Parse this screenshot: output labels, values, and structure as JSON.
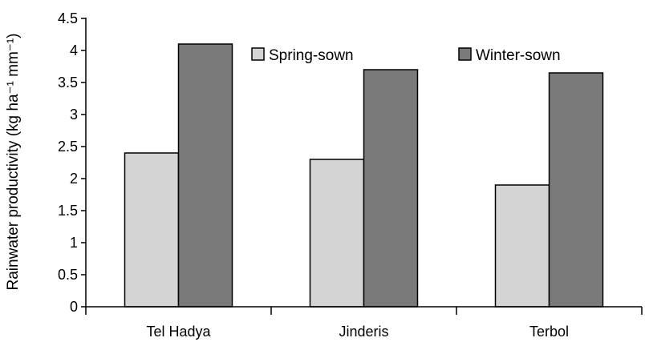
{
  "chart_data": {
    "type": "bar",
    "categories": [
      "Tel Hadya",
      "Jinderis",
      "Terbol"
    ],
    "series": [
      {
        "name": "Spring-sown",
        "values": [
          2.4,
          2.3,
          1.9
        ],
        "color": "#d4d4d4"
      },
      {
        "name": "Winter-sown",
        "values": [
          4.1,
          3.7,
          3.65
        ],
        "color": "#7a7a7a"
      }
    ],
    "ylabel": "Rainwater productivity (kg ha⁻¹ mm⁻¹)",
    "ylim": [
      0,
      4.5
    ],
    "yticks": [
      "0",
      "0.5",
      "1",
      "1.5",
      "2",
      "2.5",
      "3",
      "3.5",
      "4",
      "4.5"
    ],
    "legend_position": "top-right",
    "grid": false
  }
}
